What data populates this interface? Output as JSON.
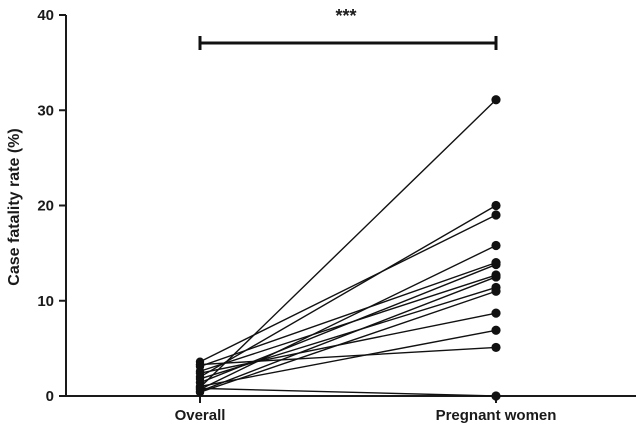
{
  "chart_data": {
    "type": "line",
    "categories": [
      "Overall",
      "Pregnant women"
    ],
    "ylabel": "Case fatality rate (%)",
    "xlabel": "",
    "ylim": [
      0,
      40
    ],
    "yticks": [
      0,
      10,
      20,
      30,
      40
    ],
    "grid": false,
    "annotation": "***",
    "colors": {
      "marks": "#111111",
      "axis": "#1a1a1a"
    },
    "pairs": [
      [
        0.9,
        31.1
      ],
      [
        2.0,
        20.0
      ],
      [
        3.6,
        19.0
      ],
      [
        0.7,
        15.8
      ],
      [
        3.1,
        14.0
      ],
      [
        1.4,
        13.8
      ],
      [
        2.6,
        12.7
      ],
      [
        0.5,
        12.5
      ],
      [
        1.8,
        11.4
      ],
      [
        0.4,
        11.0
      ],
      [
        2.4,
        8.7
      ],
      [
        1.0,
        6.9
      ],
      [
        3.3,
        5.1
      ],
      [
        0.8,
        0.0
      ]
    ]
  }
}
